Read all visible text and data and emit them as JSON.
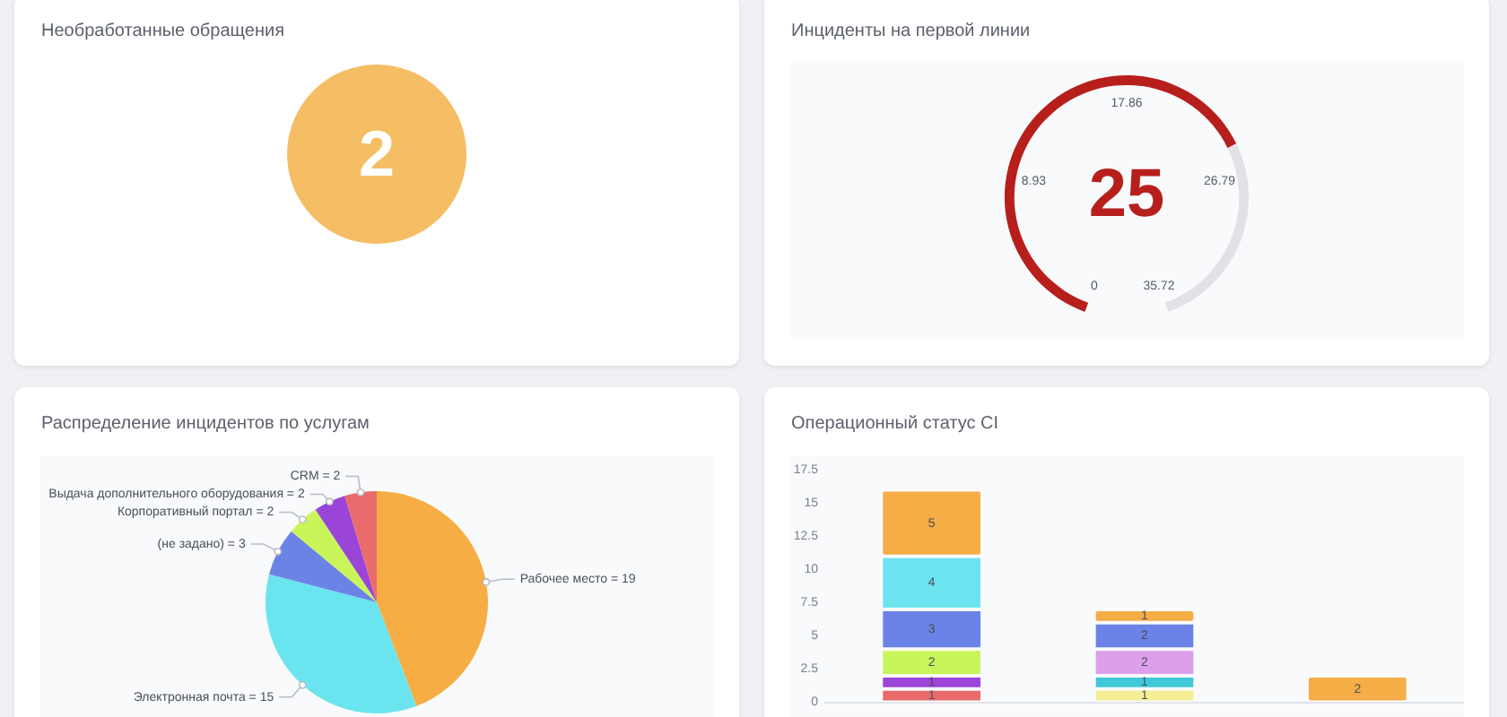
{
  "chart_data": [
    {
      "type": "other",
      "title": "Необработанные обращения",
      "annotations": [
        "2"
      ],
      "color": "#f5bd64"
    },
    {
      "type": "donut",
      "title": "Инциденты на первой линии",
      "categories": [
        null,
        null
      ],
      "values": [
        25,
        10.72
      ],
      "colors": [
        "#b71f1c",
        "#e1e2e6"
      ],
      "value_labels": [
        "25",
        null
      ],
      "annotations": [
        "0",
        "8.93",
        "17.86",
        "26.79",
        "35.72"
      ]
    },
    {
      "type": "pie",
      "title": "Распределение инцидентов по услугам",
      "categories": [
        "Рабочее место = 19",
        "Электронная почта = 15",
        "(не задано) = 3",
        "Корпоративный портал = 2",
        "Выдача дополнительного оборудования = 2",
        "CRM = 2"
      ],
      "values": [
        19,
        15,
        3,
        2,
        2,
        2
      ],
      "colors": [
        "#f6ad43",
        "#6ae4ef",
        "#6a84e6",
        "#c9f55b",
        "#9a44d8",
        "#ea6b6b"
      ]
    },
    {
      "type": "bar",
      "title": "Операционный статус CI",
      "categories": [
        null,
        null,
        null
      ],
      "stacked": true,
      "tick_labels": "y",
      "ylim": [
        0,
        17.5
      ],
      "yticks": [
        0,
        2.5,
        5,
        7.5,
        10,
        12.5,
        15,
        17.5
      ],
      "data_labels": true,
      "series": [
        {
          "color": "#e86a6a",
          "values": [
            1,
            null,
            null
          ]
        },
        {
          "color": "#f5ee92",
          "values": [
            null,
            1,
            null
          ]
        },
        {
          "color": "#9d45d8",
          "values": [
            1,
            null,
            null
          ]
        },
        {
          "color": "#40c8d8",
          "values": [
            null,
            1,
            null
          ]
        },
        {
          "color": "#c8f55a",
          "values": [
            2,
            null,
            null
          ]
        },
        {
          "color": "#dca0ea",
          "values": [
            null,
            2,
            null
          ]
        },
        {
          "color": "#6b83e6",
          "values": [
            3,
            2,
            null
          ]
        },
        {
          "color": "#6ce4f0",
          "values": [
            4,
            null,
            null
          ]
        },
        {
          "color": "#f5ad45",
          "values": [
            5,
            1,
            2
          ]
        }
      ]
    }
  ]
}
